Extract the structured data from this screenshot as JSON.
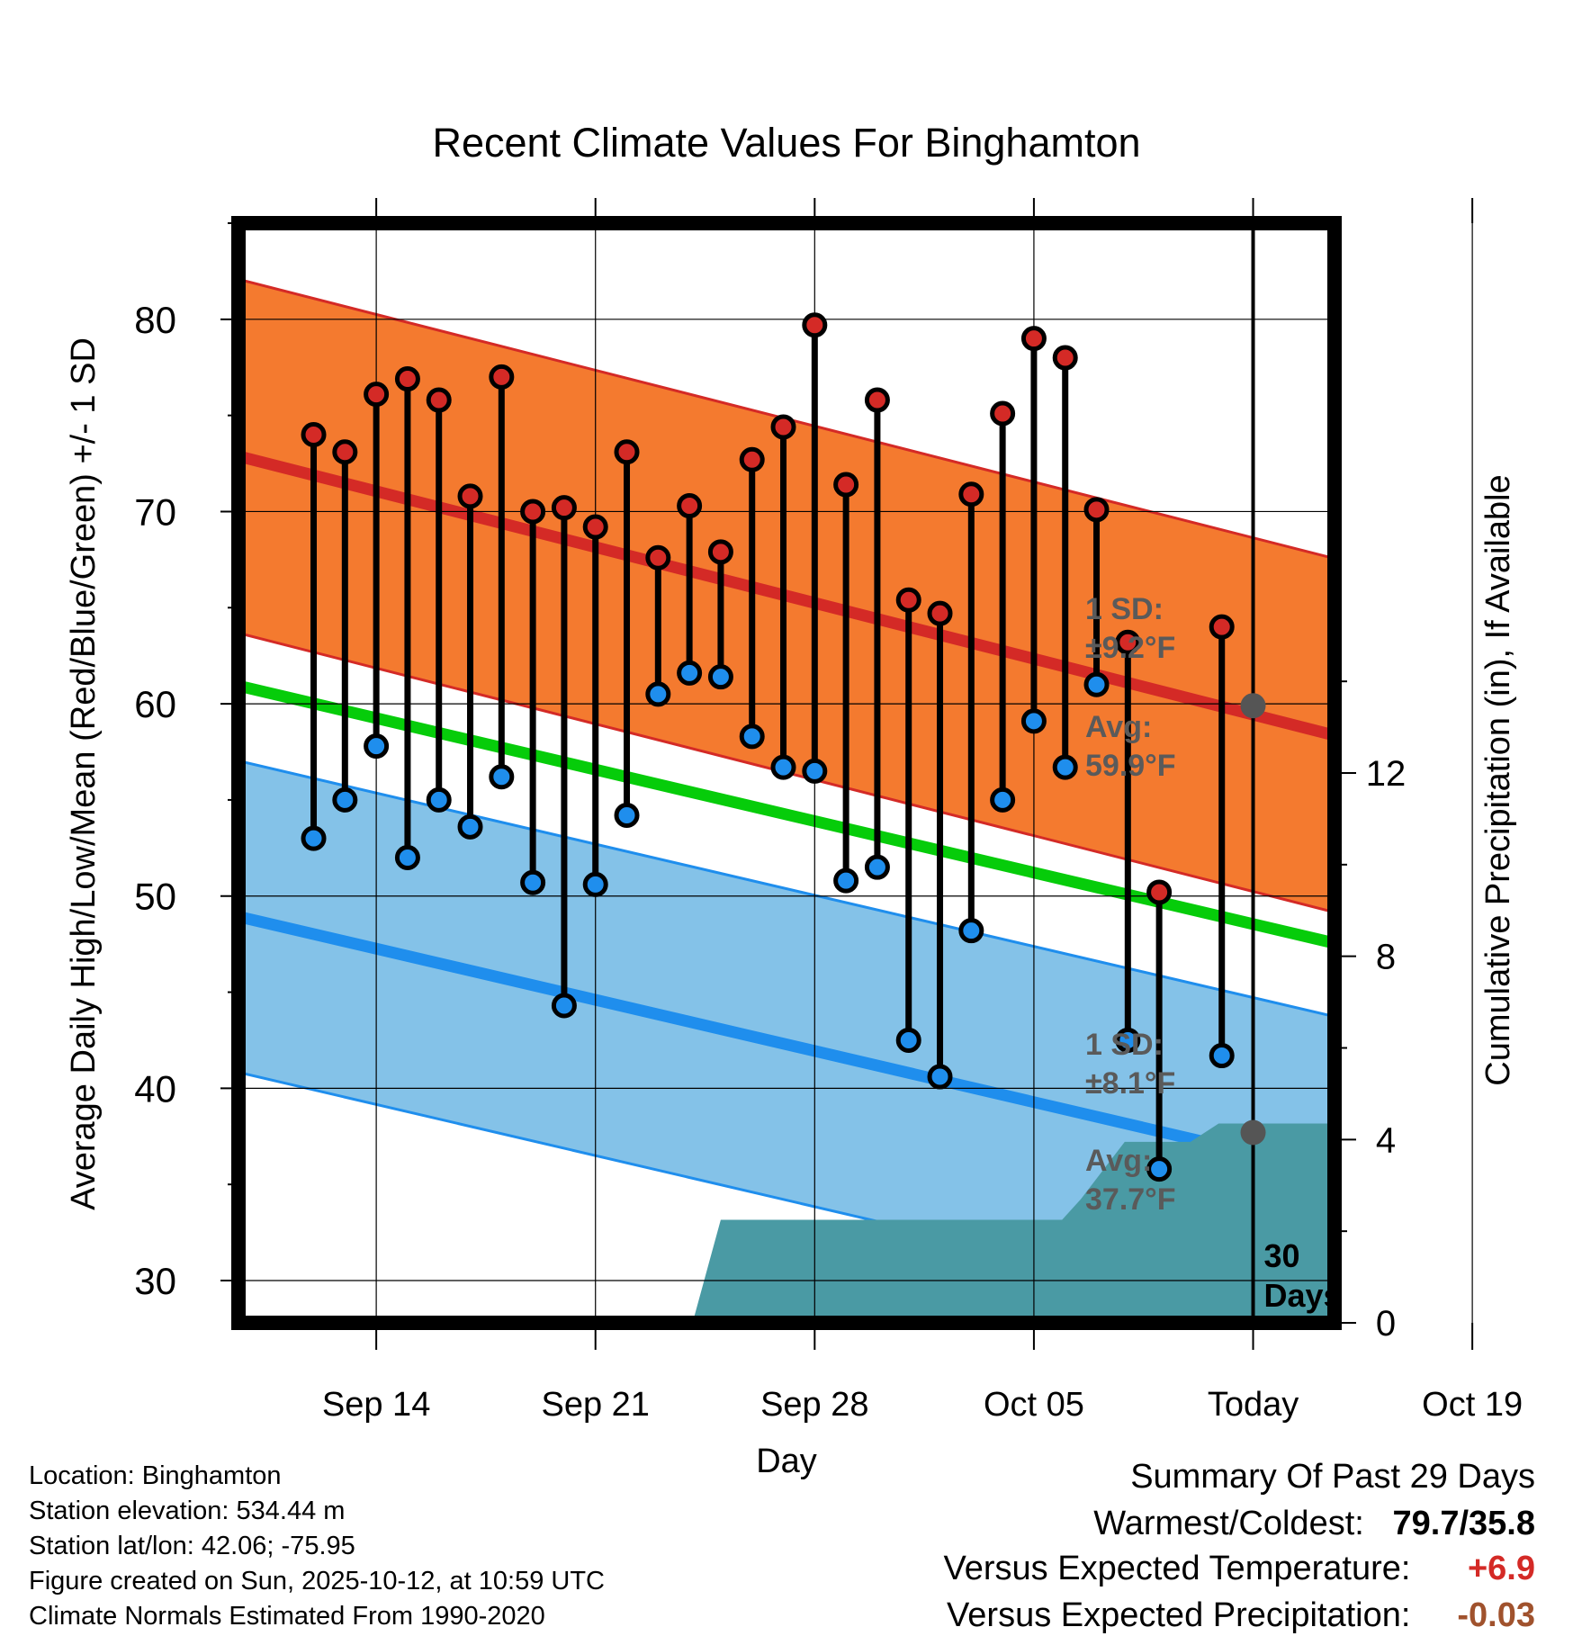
{
  "chart_data": {
    "type": "line",
    "title": "Recent Climate Values For Binghamton",
    "xlabel": "Day",
    "ylabel": "Average Daily High/Low/Mean (Red/Blue/Green) +/- 1 SD",
    "y2label": "Cumulative Precipitation (in), If Available",
    "ylim": [
      27.8,
      85
    ],
    "y2lim": [
      0,
      24
    ],
    "xlim": [
      -21.4,
      13.6
    ],
    "x_ticks": [
      {
        "day": -17,
        "label": "Sep 14"
      },
      {
        "day": -10,
        "label": "Sep 21"
      },
      {
        "day": -3,
        "label": "Sep 28"
      },
      {
        "day": 4,
        "label": "Oct 05"
      },
      {
        "day": 11,
        "label": "Today"
      },
      {
        "day": 18,
        "label": "Oct 19"
      }
    ],
    "y_ticks": [
      30,
      40,
      50,
      60,
      70,
      80
    ],
    "y2_ticks": [
      0,
      4,
      8,
      12
    ],
    "today_day": 11,
    "today_marker_label": "30 Days",
    "normals": {
      "days": [
        -20,
        20
      ],
      "high_mean": [
        72.3,
        55.7
      ],
      "high_sd": 9.2,
      "low_mean": [
        48.4,
        33.2
      ],
      "low_sd": 8.1,
      "mean": [
        60.4,
        45.1
      ]
    },
    "normals_colors": {
      "high_band": "#f47a2f",
      "high_line": "#d42a26",
      "low_band": "#84c2e8",
      "low_line": "#1f8eed",
      "mean_line": "#06cc0a",
      "precip_fill": "#4a9aa4",
      "today_dot": "#555555"
    },
    "annotations": {
      "high_sd_label": "1 SD:",
      "high_sd_value": "±9.2°F",
      "high_avg_label": "Avg:",
      "high_avg_value": "59.9°F",
      "low_sd_label": "1 SD:",
      "low_sd_value": "±8.1°F",
      "low_avg_label": "Avg:",
      "low_avg_value": "37.7°F",
      "today_high_avg": 59.9,
      "today_low_avg": 37.7
    },
    "days": [
      {
        "day": -19,
        "high": 74.0,
        "low": 53.0
      },
      {
        "day": -18,
        "high": 73.1,
        "low": 55.0
      },
      {
        "day": -17,
        "high": 76.1,
        "low": 57.8
      },
      {
        "day": -16,
        "high": 76.9,
        "low": 52.0
      },
      {
        "day": -15,
        "high": 75.8,
        "low": 55.0
      },
      {
        "day": -14,
        "high": 70.8,
        "low": 53.6
      },
      {
        "day": -13,
        "high": 77.0,
        "low": 56.2
      },
      {
        "day": -12,
        "high": 70.0,
        "low": 50.7
      },
      {
        "day": -11,
        "high": 70.2,
        "low": 44.3
      },
      {
        "day": -10,
        "high": 69.2,
        "low": 50.6
      },
      {
        "day": -9,
        "high": 73.1,
        "low": 54.2
      },
      {
        "day": -8,
        "high": 67.6,
        "low": 60.5
      },
      {
        "day": -7,
        "high": 70.3,
        "low": 61.6
      },
      {
        "day": -6,
        "high": 67.9,
        "low": 61.4
      },
      {
        "day": -5,
        "high": 72.7,
        "low": 58.3
      },
      {
        "day": -4,
        "high": 74.4,
        "low": 56.7
      },
      {
        "day": -3,
        "high": 79.7,
        "low": 56.5
      },
      {
        "day": -2,
        "high": 71.4,
        "low": 50.8
      },
      {
        "day": -1,
        "high": 75.8,
        "low": 51.5
      },
      {
        "day": 0,
        "high": 65.4,
        "low": 42.5
      },
      {
        "day": 1,
        "high": 64.7,
        "low": 40.6
      },
      {
        "day": 2,
        "high": 70.9,
        "low": 48.2
      },
      {
        "day": 3,
        "high": 75.1,
        "low": 55.0
      },
      {
        "day": 4,
        "high": 79.0,
        "low": 59.1
      },
      {
        "day": 5,
        "high": 78.0,
        "low": 56.7
      },
      {
        "day": 6,
        "high": 70.1,
        "low": 61.0
      },
      {
        "day": 7,
        "high": 63.2,
        "low": 42.5
      },
      {
        "day": 8,
        "high": 50.2,
        "low": 35.8
      },
      {
        "day": 10,
        "high": 64.0,
        "low": 41.7
      }
    ],
    "precip_cumulative": [
      {
        "day": -6.9,
        "value": 0
      },
      {
        "day": -6.0,
        "value": 2.25
      },
      {
        "day": 4.9,
        "value": 2.25
      },
      {
        "day": 5.5,
        "value": 2.7
      },
      {
        "day": 6.9,
        "value": 3.95
      },
      {
        "day": 9.0,
        "value": 3.95
      },
      {
        "day": 9.9,
        "value": 4.35
      },
      {
        "day": 13.6,
        "value": 4.35
      }
    ]
  },
  "footer": {
    "location": "Location: Binghamton",
    "elevation": "Station elevation: 534.44 m",
    "latlon": "Station lat/lon: 42.06; -75.95",
    "created": "Figure created on Sun, 2025-10-12, at 10:59 UTC",
    "normals_note": "Climate Normals Estimated From 1990-2020"
  },
  "summary": {
    "heading": "Summary Of Past 29 Days",
    "warm_cold_label": "Warmest/Coldest:",
    "warm_cold_value": "79.7/35.8",
    "temp_label": "Versus Expected Temperature:",
    "temp_value": "+6.9",
    "temp_color": "#d42a26",
    "precip_label": "Versus Expected Precipitation:",
    "precip_value": "-0.03",
    "precip_color": "#a0522d"
  }
}
